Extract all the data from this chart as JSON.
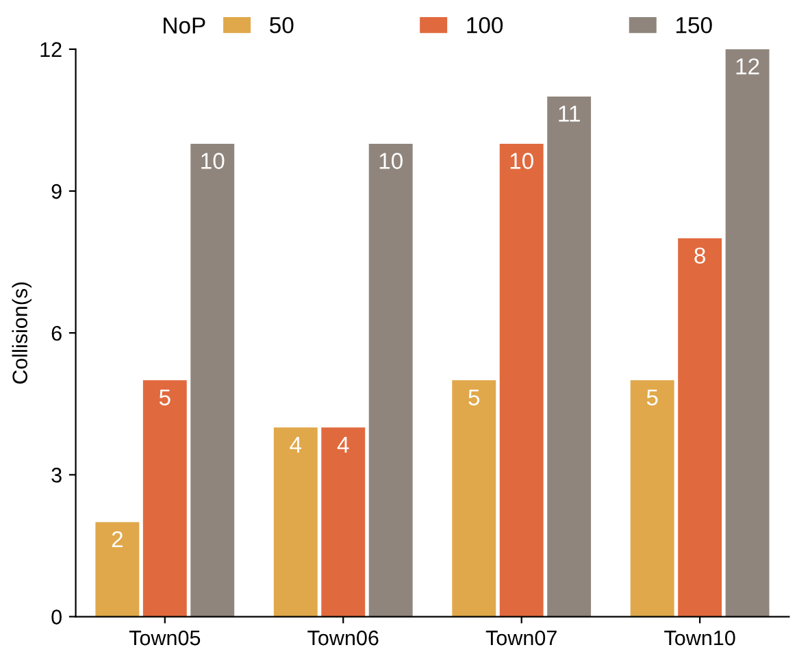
{
  "chart_data": {
    "type": "bar",
    "ylabel": "Collision(s)",
    "legend_title": "NoP",
    "categories": [
      "Town05",
      "Town06",
      "Town07",
      "Town10"
    ],
    "series": [
      {
        "name": "50",
        "color": "#e0a84a",
        "values": [
          2,
          4,
          5,
          5
        ]
      },
      {
        "name": "100",
        "color": "#e06a3e",
        "values": [
          5,
          4,
          10,
          8
        ]
      },
      {
        "name": "150",
        "color": "#8f857c",
        "values": [
          10,
          10,
          11,
          12
        ]
      }
    ],
    "ylim": [
      0,
      12
    ],
    "yticks": [
      0,
      3,
      6,
      9,
      12
    ],
    "grid": false,
    "legend": "top",
    "data_labels": true
  }
}
